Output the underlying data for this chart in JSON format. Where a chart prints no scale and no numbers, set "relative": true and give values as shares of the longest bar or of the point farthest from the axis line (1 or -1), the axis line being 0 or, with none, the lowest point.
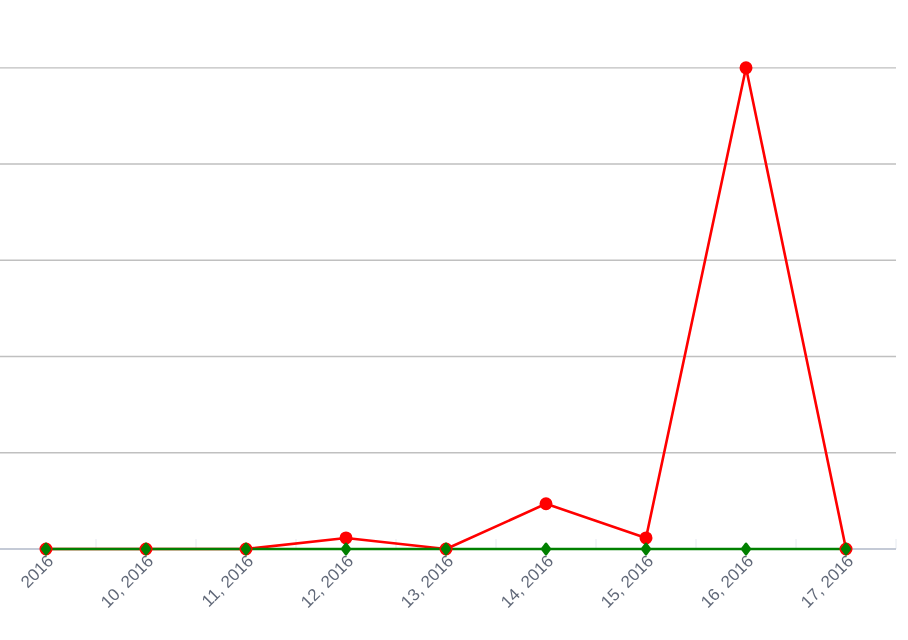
{
  "chart_data": {
    "type": "line",
    "relative": true,
    "categories": [
      "2016",
      "10, 2016",
      "11, 2016",
      "12, 2016",
      "13, 2016",
      "14, 2016",
      "15, 2016",
      "16, 2016",
      "17, 2016"
    ],
    "series": [
      {
        "color": "#ff0000",
        "marker": "circle",
        "values": [
          0,
          0,
          0,
          0.023,
          0,
          0.094,
          0.023,
          1,
          0
        ]
      },
      {
        "color": "#008000",
        "marker": "diamond",
        "values": [
          0,
          0,
          0,
          0,
          0,
          0,
          0,
          0,
          0
        ]
      }
    ],
    "grid": "y"
  }
}
